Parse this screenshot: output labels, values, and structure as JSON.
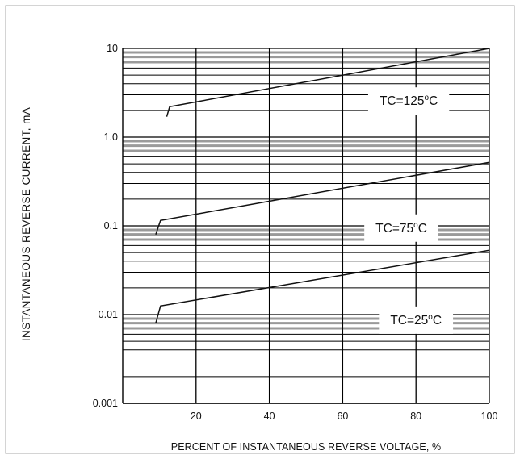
{
  "chart_data": {
    "type": "line",
    "title": "",
    "xlabel": "PERCENT OF INSTANTANEOUS REVERSE VOLTAGE, %",
    "ylabel": "INSTANTANEOUS REVERSE CURRENT, mA",
    "xlim": [
      0,
      100
    ],
    "ylim": [
      0.001,
      10
    ],
    "yscale": "log",
    "grid": true,
    "x_ticks": [
      "20",
      "40",
      "60",
      "80",
      "100"
    ],
    "y_ticks": [
      "0.001",
      "0.01",
      "0.1",
      "1.0",
      "10"
    ],
    "series": [
      {
        "x": [
          12,
          12.8,
          100
        ],
        "y": [
          1.7,
          2.2,
          10
        ]
      },
      {
        "x": [
          9,
          10.3,
          100
        ],
        "y": [
          0.08,
          0.115,
          0.52
        ]
      },
      {
        "x": [
          9,
          10.3,
          100
        ],
        "y": [
          0.008,
          0.0125,
          0.053
        ]
      }
    ],
    "annotations": [
      {
        "main": "TC=125",
        "sup": "o",
        "tail": "C",
        "x": 78,
        "y": 2.3
      },
      {
        "main": "TC=75",
        "sup": "o",
        "tail": "C",
        "x": 76,
        "y": 0.085
      },
      {
        "main": "TC=25",
        "sup": "o",
        "tail": "C",
        "x": 80,
        "y": 0.0078
      }
    ],
    "colors": {
      "line": "#111111",
      "grid": "#000000",
      "axis": "#000000"
    }
  }
}
